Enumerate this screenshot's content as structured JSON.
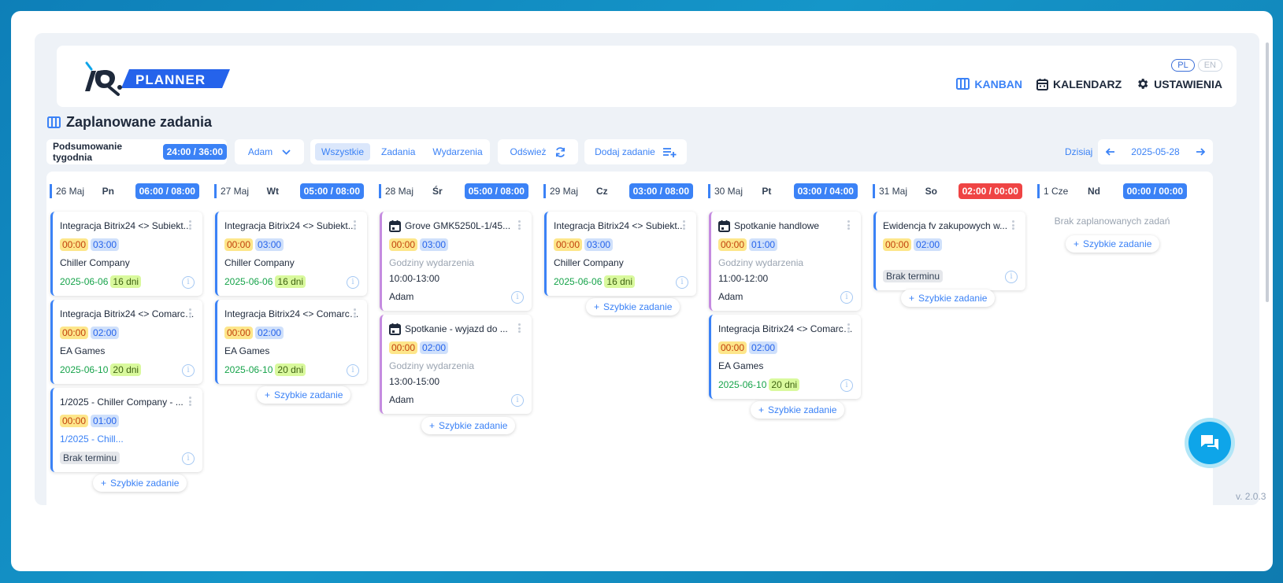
{
  "header": {
    "logo_text": "iQ.PLANNER",
    "lang": [
      "PL",
      "EN"
    ],
    "nav": [
      {
        "label": "KANBAN",
        "icon": "kanban-icon",
        "active": true
      },
      {
        "label": "KALENDARZ",
        "icon": "calendar-icon",
        "active": false
      },
      {
        "label": "USTAWIENIA",
        "icon": "gear-icon",
        "active": false
      }
    ]
  },
  "page_title": "Zaplanowane zadania",
  "toolbar": {
    "summary_label": "Podsumowanie tygodnia",
    "summary_value": "24:00 / 36:00",
    "user": "Adam",
    "filters": [
      "Wszystkie",
      "Zadania",
      "Wydarzenia"
    ],
    "refresh": "Odśwież",
    "add_task": "Dodaj zadanie",
    "today": "Dzisiaj",
    "date": "2025-05-28"
  },
  "quick_add_label": "Szybkie zadanie",
  "columns": [
    {
      "date": "26 Maj",
      "day": "Pn",
      "hours": "06:00 / 08:00",
      "over": false
    },
    {
      "date": "27 Maj",
      "day": "Wt",
      "hours": "05:00 / 08:00",
      "over": false
    },
    {
      "date": "28 Maj",
      "day": "Śr",
      "hours": "05:00 / 08:00",
      "over": false
    },
    {
      "date": "29 Maj",
      "day": "Cz",
      "hours": "03:00 / 08:00",
      "over": false
    },
    {
      "date": "30 Maj",
      "day": "Pt",
      "hours": "03:00 / 04:00",
      "over": false
    },
    {
      "date": "31 Maj",
      "day": "So",
      "hours": "02:00 / 00:00",
      "over": true
    },
    {
      "date": "1 Cze",
      "day": "Nd",
      "hours": "00:00 / 00:00",
      "over": false,
      "empty_text": "Brak zaplanowanych zadań"
    }
  ],
  "cards": {
    "c0a": {
      "title": "Integracja Bitrix24 <> Subiekt...",
      "t1": "00:00",
      "t2": "03:00",
      "client": "Chiller Company",
      "due": "2025-06-06",
      "days": "16 dni"
    },
    "c0b": {
      "title": "Integracja Bitrix24 <> Comarch...",
      "t1": "00:00",
      "t2": "02:00",
      "client": "EA Games",
      "due": "2025-06-10",
      "days": "20 dni"
    },
    "c0c": {
      "title": "1/2025 - Chiller Company - ...",
      "t1": "00:00",
      "t2": "01:00",
      "link": "1/2025 - Chill...",
      "nodue": "Brak terminu"
    },
    "c1a": {
      "title": "Integracja Bitrix24 <> Subiekt...",
      "t1": "00:00",
      "t2": "03:00",
      "client": "Chiller Company",
      "due": "2025-06-06",
      "days": "16 dni"
    },
    "c1b": {
      "title": "Integracja Bitrix24 <> Comarch...",
      "t1": "00:00",
      "t2": "02:00",
      "client": "EA Games",
      "due": "2025-06-10",
      "days": "20 dni"
    },
    "c2a": {
      "title": "Grove GMK5250L-1/45...",
      "t1": "00:00",
      "t2": "03:00",
      "hours_label": "Godziny wydarzenia",
      "hours": "10:00-13:00",
      "person": "Adam"
    },
    "c2b": {
      "title": "Spotkanie - wyjazd do ...",
      "t1": "00:00",
      "t2": "02:00",
      "hours_label": "Godziny wydarzenia",
      "hours": "13:00-15:00",
      "person": "Adam"
    },
    "c3a": {
      "title": "Integracja Bitrix24 <> Subiekt...",
      "t1": "00:00",
      "t2": "03:00",
      "client": "Chiller Company",
      "due": "2025-06-06",
      "days": "16 dni"
    },
    "c4a": {
      "title": "Spotkanie handlowe",
      "t1": "00:00",
      "t2": "01:00",
      "hours_label": "Godziny wydarzenia",
      "hours": "11:00-12:00",
      "person": "Adam"
    },
    "c4b": {
      "title": "Integracja Bitrix24 <> Comarch...",
      "t1": "00:00",
      "t2": "02:00",
      "client": "EA Games",
      "due": "2025-06-10",
      "days": "20 dni"
    },
    "c5a": {
      "title": "Ewidencja fv zakupowych w...",
      "t1": "00:00",
      "t2": "02:00",
      "nodue": "Brak terminu"
    }
  },
  "version": "v. 2.0.3"
}
